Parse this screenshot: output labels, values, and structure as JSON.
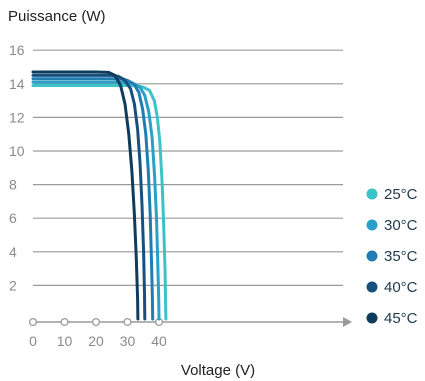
{
  "chart_data": {
    "type": "line",
    "title": "",
    "ylabel": "Puissance (W)",
    "xlabel": "Voltage (V)",
    "xlim": [
      0,
      43
    ],
    "ylim": [
      0,
      16
    ],
    "x_ticks": [
      0,
      10,
      20,
      30,
      40
    ],
    "y_ticks": [
      2,
      4,
      6,
      8,
      10,
      12,
      14,
      16
    ],
    "grid": "horizontal",
    "legend_position": "right",
    "series": [
      {
        "name": "25°C",
        "color": "#3cc3c7",
        "points": [
          [
            0,
            13.9
          ],
          [
            5,
            13.9
          ],
          [
            10,
            13.9
          ],
          [
            15,
            13.9
          ],
          [
            20,
            13.9
          ],
          [
            25,
            13.9
          ],
          [
            30,
            13.9
          ],
          [
            33,
            13.88
          ],
          [
            35,
            13.8
          ],
          [
            37,
            13.6
          ],
          [
            38.5,
            13.0
          ],
          [
            39.5,
            12.0
          ],
          [
            40.3,
            10.5
          ],
          [
            41,
            8.0
          ],
          [
            41.5,
            5.5
          ],
          [
            41.9,
            3.0
          ],
          [
            42.1,
            1.0
          ],
          [
            42.2,
            0
          ]
        ]
      },
      {
        "name": "30°C",
        "color": "#28a0c8",
        "points": [
          [
            0,
            14.1
          ],
          [
            5,
            14.1
          ],
          [
            10,
            14.1
          ],
          [
            15,
            14.1
          ],
          [
            20,
            14.1
          ],
          [
            25,
            14.1
          ],
          [
            30,
            14.08
          ],
          [
            32,
            14.0
          ],
          [
            34,
            13.8
          ],
          [
            35.5,
            13.3
          ],
          [
            36.8,
            12.3
          ],
          [
            37.8,
            10.8
          ],
          [
            38.6,
            8.5
          ],
          [
            39.2,
            6.0
          ],
          [
            39.6,
            3.5
          ],
          [
            39.9,
            1.2
          ],
          [
            40.0,
            0
          ]
        ]
      },
      {
        "name": "35°C",
        "color": "#1f7db2",
        "points": [
          [
            0,
            14.3
          ],
          [
            5,
            14.3
          ],
          [
            10,
            14.3
          ],
          [
            15,
            14.3
          ],
          [
            20,
            14.3
          ],
          [
            25,
            14.3
          ],
          [
            28,
            14.28
          ],
          [
            30,
            14.2
          ],
          [
            32,
            14.0
          ],
          [
            33.6,
            13.5
          ],
          [
            34.8,
            12.5
          ],
          [
            35.8,
            11.0
          ],
          [
            36.6,
            8.8
          ],
          [
            37.2,
            6.2
          ],
          [
            37.6,
            3.6
          ],
          [
            37.9,
            1.2
          ],
          [
            38.0,
            0
          ]
        ]
      },
      {
        "name": "40°C",
        "color": "#17507e",
        "points": [
          [
            0,
            14.5
          ],
          [
            5,
            14.5
          ],
          [
            10,
            14.5
          ],
          [
            15,
            14.5
          ],
          [
            20,
            14.5
          ],
          [
            25,
            14.5
          ],
          [
            27,
            14.45
          ],
          [
            29,
            14.25
          ],
          [
            31,
            13.7
          ],
          [
            32.2,
            12.8
          ],
          [
            33.2,
            11.3
          ],
          [
            34.0,
            9.2
          ],
          [
            34.6,
            6.8
          ],
          [
            35.1,
            4.0
          ],
          [
            35.4,
            1.5
          ],
          [
            35.5,
            0
          ]
        ]
      },
      {
        "name": "45°C",
        "color": "#0e3c5d",
        "points": [
          [
            0,
            14.7
          ],
          [
            5,
            14.7
          ],
          [
            10,
            14.7
          ],
          [
            15,
            14.7
          ],
          [
            20,
            14.7
          ],
          [
            24,
            14.68
          ],
          [
            26,
            14.5
          ],
          [
            27.8,
            13.9
          ],
          [
            29.2,
            12.8
          ],
          [
            30.4,
            11.0
          ],
          [
            31.4,
            8.8
          ],
          [
            32.2,
            6.2
          ],
          [
            32.8,
            3.6
          ],
          [
            33.2,
            1.2
          ],
          [
            33.3,
            0
          ]
        ]
      }
    ]
  }
}
